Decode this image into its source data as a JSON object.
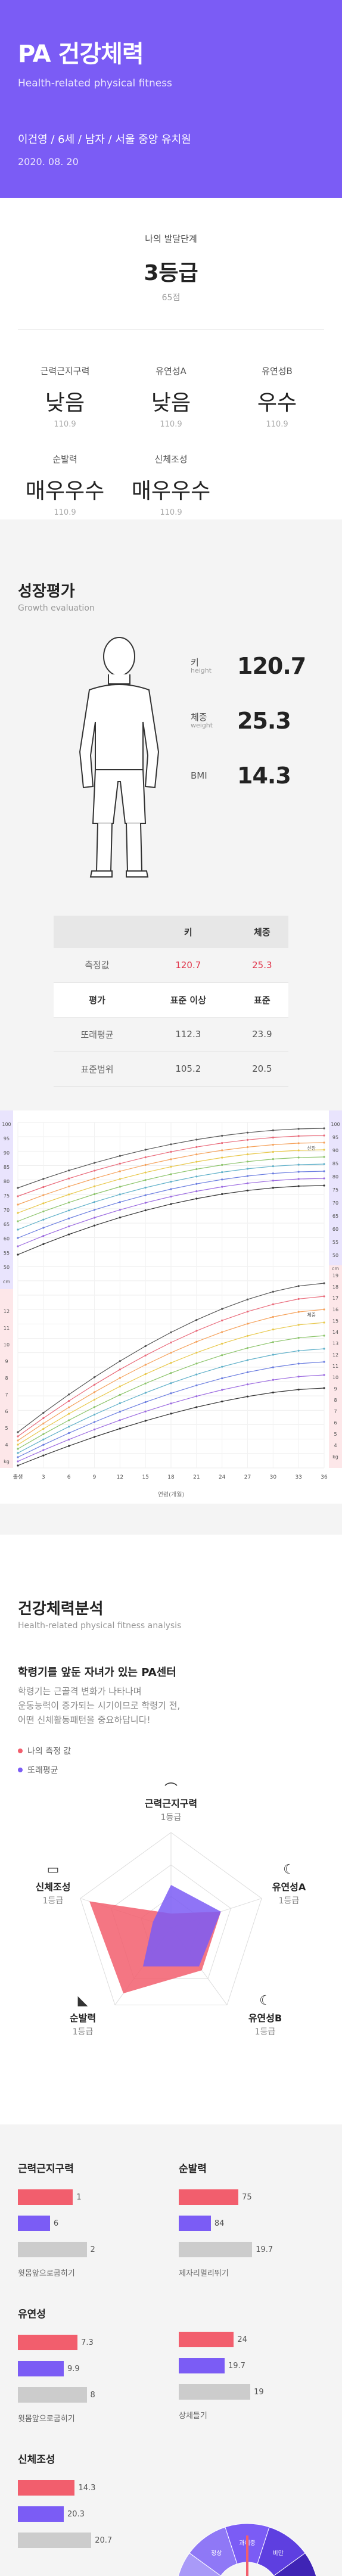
{
  "header": {
    "title": "PA 건강체력",
    "subtitle": "Health-related physical fitness",
    "profile": "이건영 / 6세 / 남자 / 서울 중앙 유치원",
    "date": "2020. 08. 20"
  },
  "level": {
    "label": "나의 발달단계",
    "grade": "3등급",
    "points": "65점"
  },
  "stats": [
    {
      "name": "근력근지구력",
      "value": "낮음",
      "sub": "110.9"
    },
    {
      "name": "유연성A",
      "value": "낮음",
      "sub": "110.9"
    },
    {
      "name": "유연성B",
      "value": "우수",
      "sub": "110.9"
    },
    {
      "name": "순발력",
      "value": "매우우수",
      "sub": "110.9"
    },
    {
      "name": "신체조성",
      "value": "매우우수",
      "sub": "110.9"
    }
  ],
  "growth": {
    "title": "성장평가",
    "subtitle": "Growth evaluation",
    "metrics": [
      {
        "label": "키",
        "sub": "height",
        "value": "120.7"
      },
      {
        "label": "체중",
        "sub": "weight",
        "value": "25.3"
      },
      {
        "label": "BMI",
        "sub": "",
        "value": "14.3"
      }
    ],
    "table": {
      "header": [
        "",
        "키",
        "체중"
      ],
      "measured": [
        "측정값",
        "120.7",
        "25.3"
      ],
      "header2": [
        "평가",
        "표준 이상",
        "표준"
      ],
      "avg": [
        "또래평균",
        "112.3",
        "23.9"
      ],
      "range": [
        "표준범위",
        "105.2",
        "20.5"
      ]
    }
  },
  "percentile": {
    "left_top_ticks": [
      "100",
      "95",
      "90",
      "85",
      "80",
      "75",
      "70",
      "65",
      "60",
      "55",
      "50",
      "cm"
    ],
    "left_bottom_ticks": [
      "12",
      "11",
      "10",
      "9",
      "8",
      "7",
      "6",
      "5",
      "4",
      "kg"
    ],
    "right_top_ticks": [
      "100",
      "95",
      "90",
      "85",
      "80",
      "75",
      "70",
      "65",
      "60",
      "55",
      "50",
      "cm"
    ],
    "right_bottom_ticks": [
      "19",
      "18",
      "17",
      "16",
      "15",
      "14",
      "13",
      "12",
      "11",
      "10",
      "9",
      "8",
      "7",
      "6",
      "5",
      "4",
      "kg"
    ],
    "x_ticks": [
      "출생",
      "3",
      "6",
      "9",
      "12",
      "15",
      "18",
      "21",
      "24",
      "27",
      "30",
      "33",
      "36"
    ],
    "x_label": "연령(개월)",
    "series_label_top": "신장",
    "series_label_bottom": "체중"
  },
  "analysis": {
    "title": "건강체력분석",
    "subtitle": "Health-related physical fitness analysis",
    "headline": "학령기를 앞둔 자녀가 있는 PA센터",
    "text1": "학령기는 근골격 변화가 나타나며",
    "text2": "운동능력이 증가되는 시기이므로 학령기 전,",
    "text3": "어떤 신체활동패턴을 중요하답니다!",
    "legend": [
      {
        "label": "나의 측정 값",
        "color": "#f25e6d"
      },
      {
        "label": "또래평균",
        "color": "#7b5cf5"
      }
    ],
    "radar_labels": [
      {
        "title": "근력근지구력",
        "grade": "1등급",
        "icon": "muscle-icon"
      },
      {
        "title": "유연성A",
        "grade": "1등급",
        "icon": "moon-icon"
      },
      {
        "title": "유연성B",
        "grade": "1등급",
        "icon": "moon-icon"
      },
      {
        "title": "순발력",
        "grade": "1등급",
        "icon": "shoe-icon"
      },
      {
        "title": "신체조성",
        "grade": "1등급",
        "icon": "laptop-icon"
      }
    ],
    "radar_mine": [
      0.15,
      0.55,
      0.55,
      0.85,
      0.9
    ],
    "radar_avg": [
      0.45,
      0.55,
      0.5,
      0.5,
      0.2
    ]
  },
  "bars": [
    {
      "title": "근력근지구력",
      "foot": "윗몸앞으로굽히기",
      "mine": "1",
      "avg": "6",
      "std": "2",
      "mine_frac": 0.6,
      "avg_frac": 0.35,
      "std_frac": 0.75
    },
    {
      "title": "순발력",
      "foot": "제자리멀리뛰기",
      "mine": "75",
      "avg": "84",
      "std": "19.7",
      "mine_frac": 0.65,
      "avg_frac": 0.35,
      "std_frac": 0.8
    },
    {
      "title": "유연성",
      "foot": "윗몸앞으로굽히기",
      "mine": "7.3",
      "avg": "9.9",
      "std": "8",
      "mine_frac": 0.65,
      "avg_frac": 0.5,
      "std_frac": 0.75
    },
    {
      "title": "",
      "foot": "상체들기",
      "mine": "24",
      "avg": "19.7",
      "std": "19",
      "mine_frac": 0.6,
      "avg_frac": 0.5,
      "std_frac": 0.78
    },
    {
      "title": "신체조성",
      "foot": "",
      "mine": "14.3",
      "avg": "20.3",
      "std": "20.7",
      "mine_frac": 0.62,
      "avg_frac": 0.5,
      "std_frac": 0.8
    }
  ],
  "gauge": {
    "labels": [
      "저체중",
      "정상",
      "과체중",
      "비만",
      "고도비만"
    ]
  },
  "colors": {
    "primary": "#7b5cf5",
    "mine": "#f25e6d",
    "std": "#cccccc"
  }
}
